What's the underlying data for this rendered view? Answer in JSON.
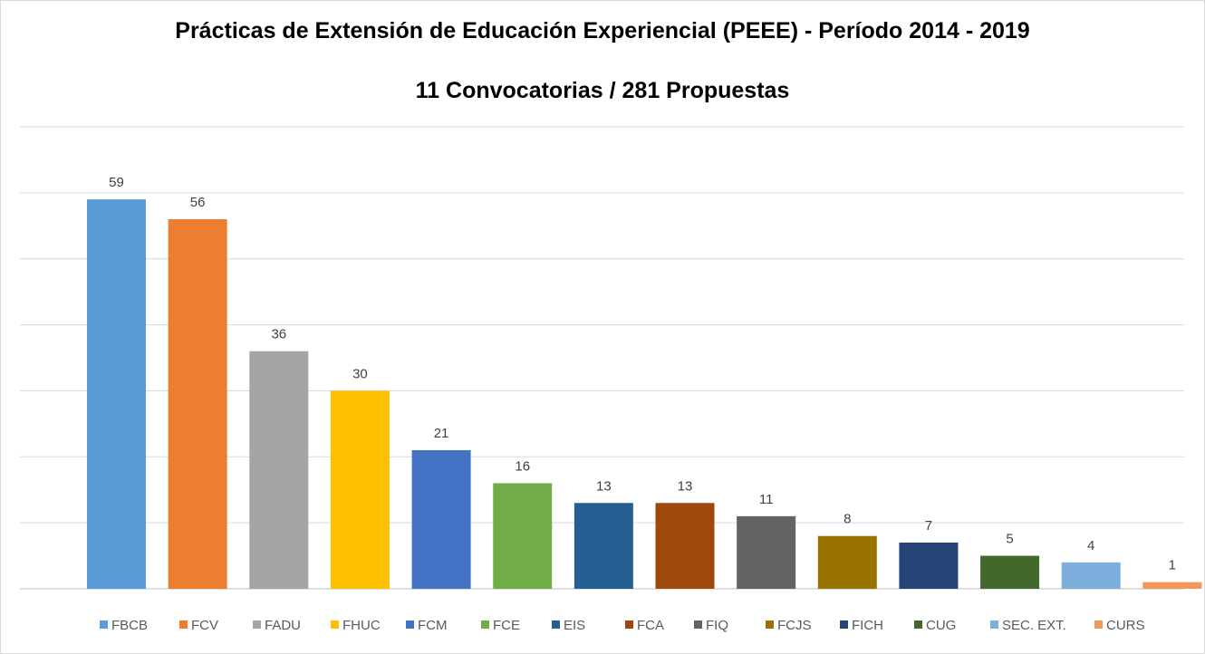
{
  "chart_data": {
    "type": "bar",
    "title": "Prácticas de Extensión de Educación Experiencial (PEEE) - Período 2014 - 2019",
    "subtitle": "11 Convocatorias / 281 Propuestas",
    "categories": [
      "FBCB",
      "FCV",
      "FADU",
      "FHUC",
      "FCM",
      "FCE",
      "EIS",
      "FCA",
      "FIQ",
      "FCJS",
      "FICH",
      "CUG",
      "SEC. EXT.",
      "CURS"
    ],
    "values": [
      59,
      56,
      36,
      30,
      21,
      16,
      13,
      13,
      11,
      8,
      7,
      5,
      4,
      1
    ],
    "colors": [
      "#5B9BD5",
      "#ED7D31",
      "#A5A5A5",
      "#FFC000",
      "#4472C4",
      "#70AD47",
      "#255E91",
      "#9E480E",
      "#636363",
      "#997300",
      "#264478",
      "#43682B",
      "#7CAFDD",
      "#F1975A"
    ],
    "xlabel": "",
    "ylabel": "",
    "ylim": [
      0,
      70
    ],
    "grid": true,
    "grid_step": 10,
    "legend": "bottom",
    "data_labels": true
  }
}
